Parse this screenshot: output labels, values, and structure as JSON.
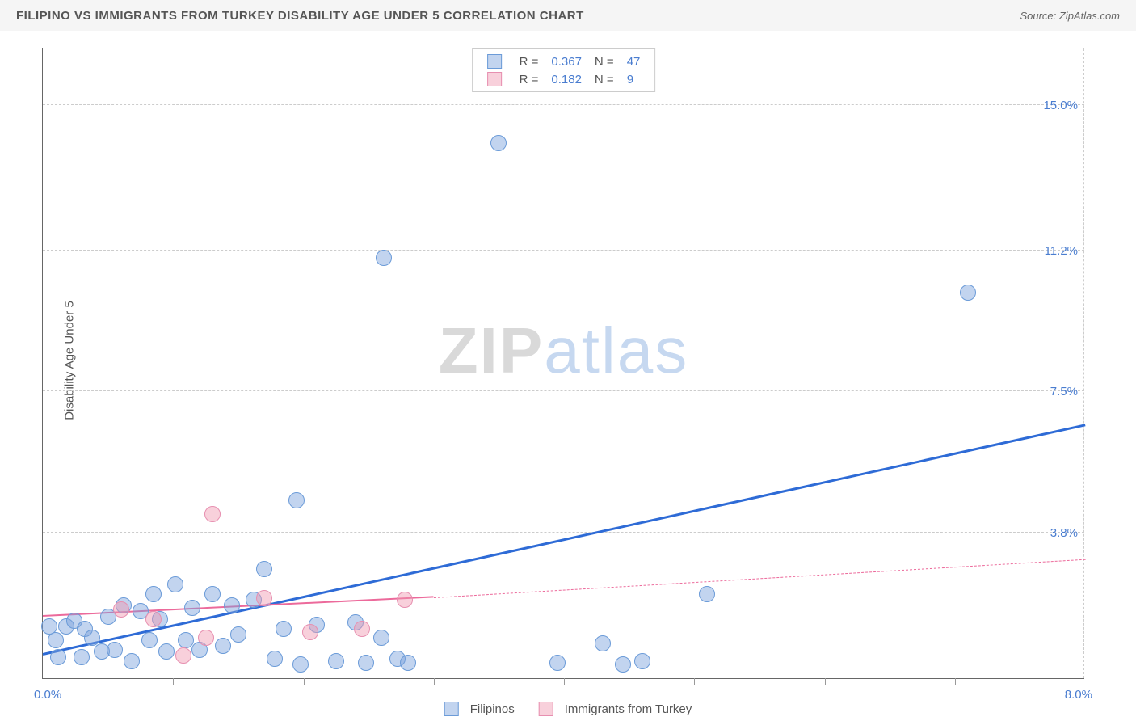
{
  "header": {
    "title": "FILIPINO VS IMMIGRANTS FROM TURKEY DISABILITY AGE UNDER 5 CORRELATION CHART",
    "source": "Source: ZipAtlas.com"
  },
  "axes": {
    "ylabel": "Disability Age Under 5",
    "x_left": "0.0%",
    "x_right": "8.0%",
    "x_min": 0.0,
    "x_max": 8.0,
    "y_min": 0.0,
    "y_max": 16.5,
    "y_ticks": [
      {
        "val": 3.8,
        "label": "3.8%"
      },
      {
        "val": 7.5,
        "label": "7.5%"
      },
      {
        "val": 11.2,
        "label": "11.2%"
      },
      {
        "val": 15.0,
        "label": "15.0%"
      }
    ],
    "x_minor_ticks": [
      1.0,
      2.0,
      3.0,
      4.0,
      5.0,
      6.0,
      7.0
    ]
  },
  "series": [
    {
      "name": "Filipinos",
      "fill": "rgba(120,160,220,0.45)",
      "stroke": "#6b9bd8",
      "marker_r": 10,
      "trend_color": "#2e6bd6",
      "trend_style": "solid",
      "trend": {
        "x1": 0.0,
        "y1": 0.6,
        "x2": 8.0,
        "y2": 6.6
      },
      "R": "0.367",
      "N": "47",
      "points": [
        {
          "x": 0.05,
          "y": 1.35
        },
        {
          "x": 0.1,
          "y": 1.0
        },
        {
          "x": 0.12,
          "y": 0.55
        },
        {
          "x": 0.18,
          "y": 1.35
        },
        {
          "x": 0.24,
          "y": 1.5
        },
        {
          "x": 0.3,
          "y": 0.55
        },
        {
          "x": 0.32,
          "y": 1.3
        },
        {
          "x": 0.38,
          "y": 1.05
        },
        {
          "x": 0.45,
          "y": 0.7
        },
        {
          "x": 0.5,
          "y": 1.6
        },
        {
          "x": 0.55,
          "y": 0.75
        },
        {
          "x": 0.62,
          "y": 1.9
        },
        {
          "x": 0.68,
          "y": 0.45
        },
        {
          "x": 0.75,
          "y": 1.75
        },
        {
          "x": 0.82,
          "y": 1.0
        },
        {
          "x": 0.85,
          "y": 2.2
        },
        {
          "x": 0.9,
          "y": 1.55
        },
        {
          "x": 0.95,
          "y": 0.7
        },
        {
          "x": 1.02,
          "y": 2.45
        },
        {
          "x": 1.1,
          "y": 1.0
        },
        {
          "x": 1.15,
          "y": 1.85
        },
        {
          "x": 1.2,
          "y": 0.75
        },
        {
          "x": 1.3,
          "y": 2.2
        },
        {
          "x": 1.38,
          "y": 0.85
        },
        {
          "x": 1.45,
          "y": 1.9
        },
        {
          "x": 1.5,
          "y": 1.15
        },
        {
          "x": 1.62,
          "y": 2.05
        },
        {
          "x": 1.7,
          "y": 2.85
        },
        {
          "x": 1.78,
          "y": 0.5
        },
        {
          "x": 1.85,
          "y": 1.3
        },
        {
          "x": 1.95,
          "y": 4.65
        },
        {
          "x": 1.98,
          "y": 0.35
        },
        {
          "x": 2.1,
          "y": 1.4
        },
        {
          "x": 2.25,
          "y": 0.45
        },
        {
          "x": 2.4,
          "y": 1.45
        },
        {
          "x": 2.48,
          "y": 0.4
        },
        {
          "x": 2.6,
          "y": 1.05
        },
        {
          "x": 2.62,
          "y": 11.0
        },
        {
          "x": 2.72,
          "y": 0.5
        },
        {
          "x": 2.8,
          "y": 0.4
        },
        {
          "x": 3.5,
          "y": 14.0
        },
        {
          "x": 3.95,
          "y": 0.4
        },
        {
          "x": 4.3,
          "y": 0.9
        },
        {
          "x": 4.45,
          "y": 0.35
        },
        {
          "x": 4.6,
          "y": 0.45
        },
        {
          "x": 5.1,
          "y": 2.2
        },
        {
          "x": 7.1,
          "y": 10.1
        }
      ]
    },
    {
      "name": "Immigrants from Turkey",
      "fill": "rgba(240,150,175,0.45)",
      "stroke": "#e78fb0",
      "marker_r": 10,
      "trend_color": "#ec6a9b",
      "trend_style": "solid_then_dashed",
      "trend": {
        "x1": 0.0,
        "y1": 1.6,
        "x2": 3.0,
        "y2": 2.1,
        "x3": 8.0,
        "y3": 3.1
      },
      "R": "0.182",
      "N": "9",
      "points": [
        {
          "x": 0.6,
          "y": 1.8
        },
        {
          "x": 0.85,
          "y": 1.55
        },
        {
          "x": 1.08,
          "y": 0.6
        },
        {
          "x": 1.25,
          "y": 1.05
        },
        {
          "x": 1.3,
          "y": 4.3
        },
        {
          "x": 1.7,
          "y": 2.1
        },
        {
          "x": 2.05,
          "y": 1.2
        },
        {
          "x": 2.45,
          "y": 1.3
        },
        {
          "x": 2.78,
          "y": 2.05
        }
      ]
    }
  ],
  "watermark": {
    "zip": "ZIP",
    "atlas": "atlas"
  },
  "legend_top_labels": {
    "R": "R =",
    "N": "N ="
  }
}
